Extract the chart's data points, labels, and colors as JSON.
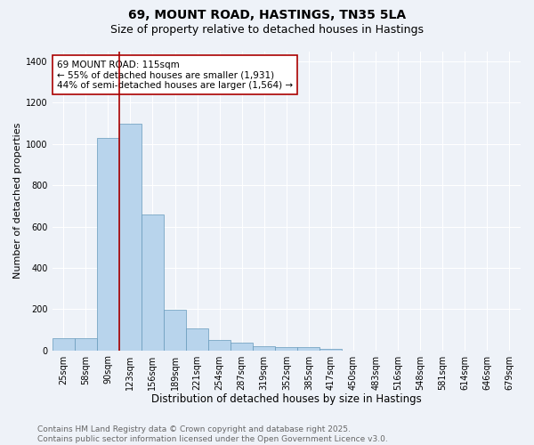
{
  "title1": "69, MOUNT ROAD, HASTINGS, TN35 5LA",
  "title2": "Size of property relative to detached houses in Hastings",
  "xlabel": "Distribution of detached houses by size in Hastings",
  "ylabel": "Number of detached properties",
  "categories": [
    "25sqm",
    "58sqm",
    "90sqm",
    "123sqm",
    "156sqm",
    "189sqm",
    "221sqm",
    "254sqm",
    "287sqm",
    "319sqm",
    "352sqm",
    "385sqm",
    "417sqm",
    "450sqm",
    "483sqm",
    "516sqm",
    "548sqm",
    "581sqm",
    "614sqm",
    "646sqm",
    "679sqm"
  ],
  "values": [
    60,
    60,
    1030,
    1100,
    660,
    195,
    105,
    50,
    35,
    20,
    15,
    15,
    5,
    0,
    0,
    0,
    0,
    0,
    0,
    0,
    0
  ],
  "bar_color": "#b8d4ec",
  "bar_edge_color": "#6699bb",
  "bar_linewidth": 0.5,
  "vline_x": 2.5,
  "vline_color": "#aa0000",
  "vline_linewidth": 1.2,
  "annotation_text": "69 MOUNT ROAD: 115sqm\n← 55% of detached houses are smaller (1,931)\n44% of semi-detached houses are larger (1,564) →",
  "annotation_box_color": "#ffffff",
  "annotation_box_edgecolor": "#aa0000",
  "ylim": [
    0,
    1450
  ],
  "yticks": [
    0,
    200,
    400,
    600,
    800,
    1000,
    1200,
    1400
  ],
  "bg_color": "#eef2f8",
  "plot_bg_color": "#eef2f8",
  "grid_color": "#ffffff",
  "footnote": "Contains HM Land Registry data © Crown copyright and database right 2025.\nContains public sector information licensed under the Open Government Licence v3.0.",
  "title1_fontsize": 10,
  "title2_fontsize": 9,
  "xlabel_fontsize": 8.5,
  "ylabel_fontsize": 8,
  "tick_fontsize": 7,
  "annotation_fontsize": 7.5,
  "footnote_fontsize": 6.5
}
